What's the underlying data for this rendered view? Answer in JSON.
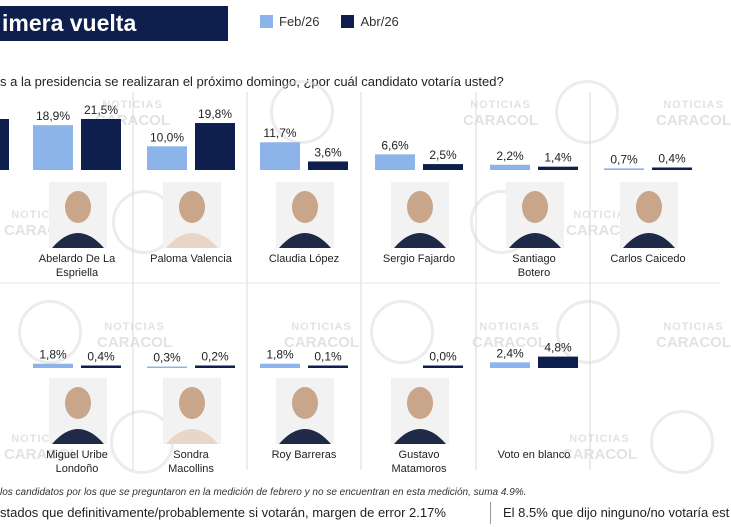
{
  "header": {
    "title": "imera vuelta"
  },
  "question": "s a la presidencia se realizaran el próximo domingo, ¿por cuál candidato votaría usted?",
  "watermark": {
    "line1": "NOTICIAS",
    "line2": "CARACOL"
  },
  "colors": {
    "feb": "#8db4ea",
    "abr": "#0e1f4d",
    "title_bg": "#0e1f4d"
  },
  "chart_data": {
    "type": "bar",
    "series": [
      {
        "name": "Feb/26",
        "values": [
          18.9,
          10.0,
          11.7,
          6.6,
          2.2,
          0.7,
          1.8,
          0.3,
          1.8,
          null,
          2.4
        ]
      },
      {
        "name": "Abr/26",
        "values": [
          21.5,
          19.8,
          3.6,
          2.5,
          1.4,
          0.4,
          0.4,
          0.2,
          0.1,
          0.0,
          4.8
        ]
      }
    ],
    "categories": [
      "Abelardo De La Espriella",
      "Paloma Valencia",
      "Claudia López",
      "Sergio Fajardo",
      "Santiago Botero",
      "Carlos Caicedo",
      "Miguel Uribe Londoño",
      "Sondra Macollins",
      "Roy Barreras",
      "Gustavo Matamoros",
      "Voto en blanco"
    ],
    "category_lines": [
      [
        "Abelardo De La",
        "Espriella"
      ],
      [
        "Paloma Valencia"
      ],
      [
        "Claudia López"
      ],
      [
        "Sergio Fajardo"
      ],
      [
        "Santiago",
        "Botero"
      ],
      [
        "Carlos Caicedo"
      ],
      [
        "Miguel Uribe",
        "Londoño"
      ],
      [
        "Sondra",
        "Macollins"
      ],
      [
        "Roy Barreras"
      ],
      [
        "Gustavo",
        "Matamoros"
      ],
      [
        "Voto en blanco"
      ]
    ],
    "value_labels": {
      "feb": [
        "18,9%",
        "10,0%",
        "11,7%",
        "6,6%",
        "2,2%",
        "0,7%",
        "1,8%",
        "0,3%",
        "1,8%",
        "",
        "2,4%"
      ],
      "abr": [
        "21,5%",
        "19,8%",
        "3,6%",
        "2,5%",
        "1,4%",
        "0,4%",
        "0,4%",
        "0,2%",
        "0,1%",
        "0,0%",
        "4,8%"
      ]
    },
    "legend": "top",
    "grid": false
  },
  "footnote": "los candidatos por los que se preguntaron en la medición de febrero y no se encuentran en esta medición, suma 4.9%.",
  "bottom": {
    "left": "stados que definitivamente/probablemente si votarán, margen de error 2.17%",
    "right": "El 8.5% que dijo ninguno/no votaría est"
  }
}
